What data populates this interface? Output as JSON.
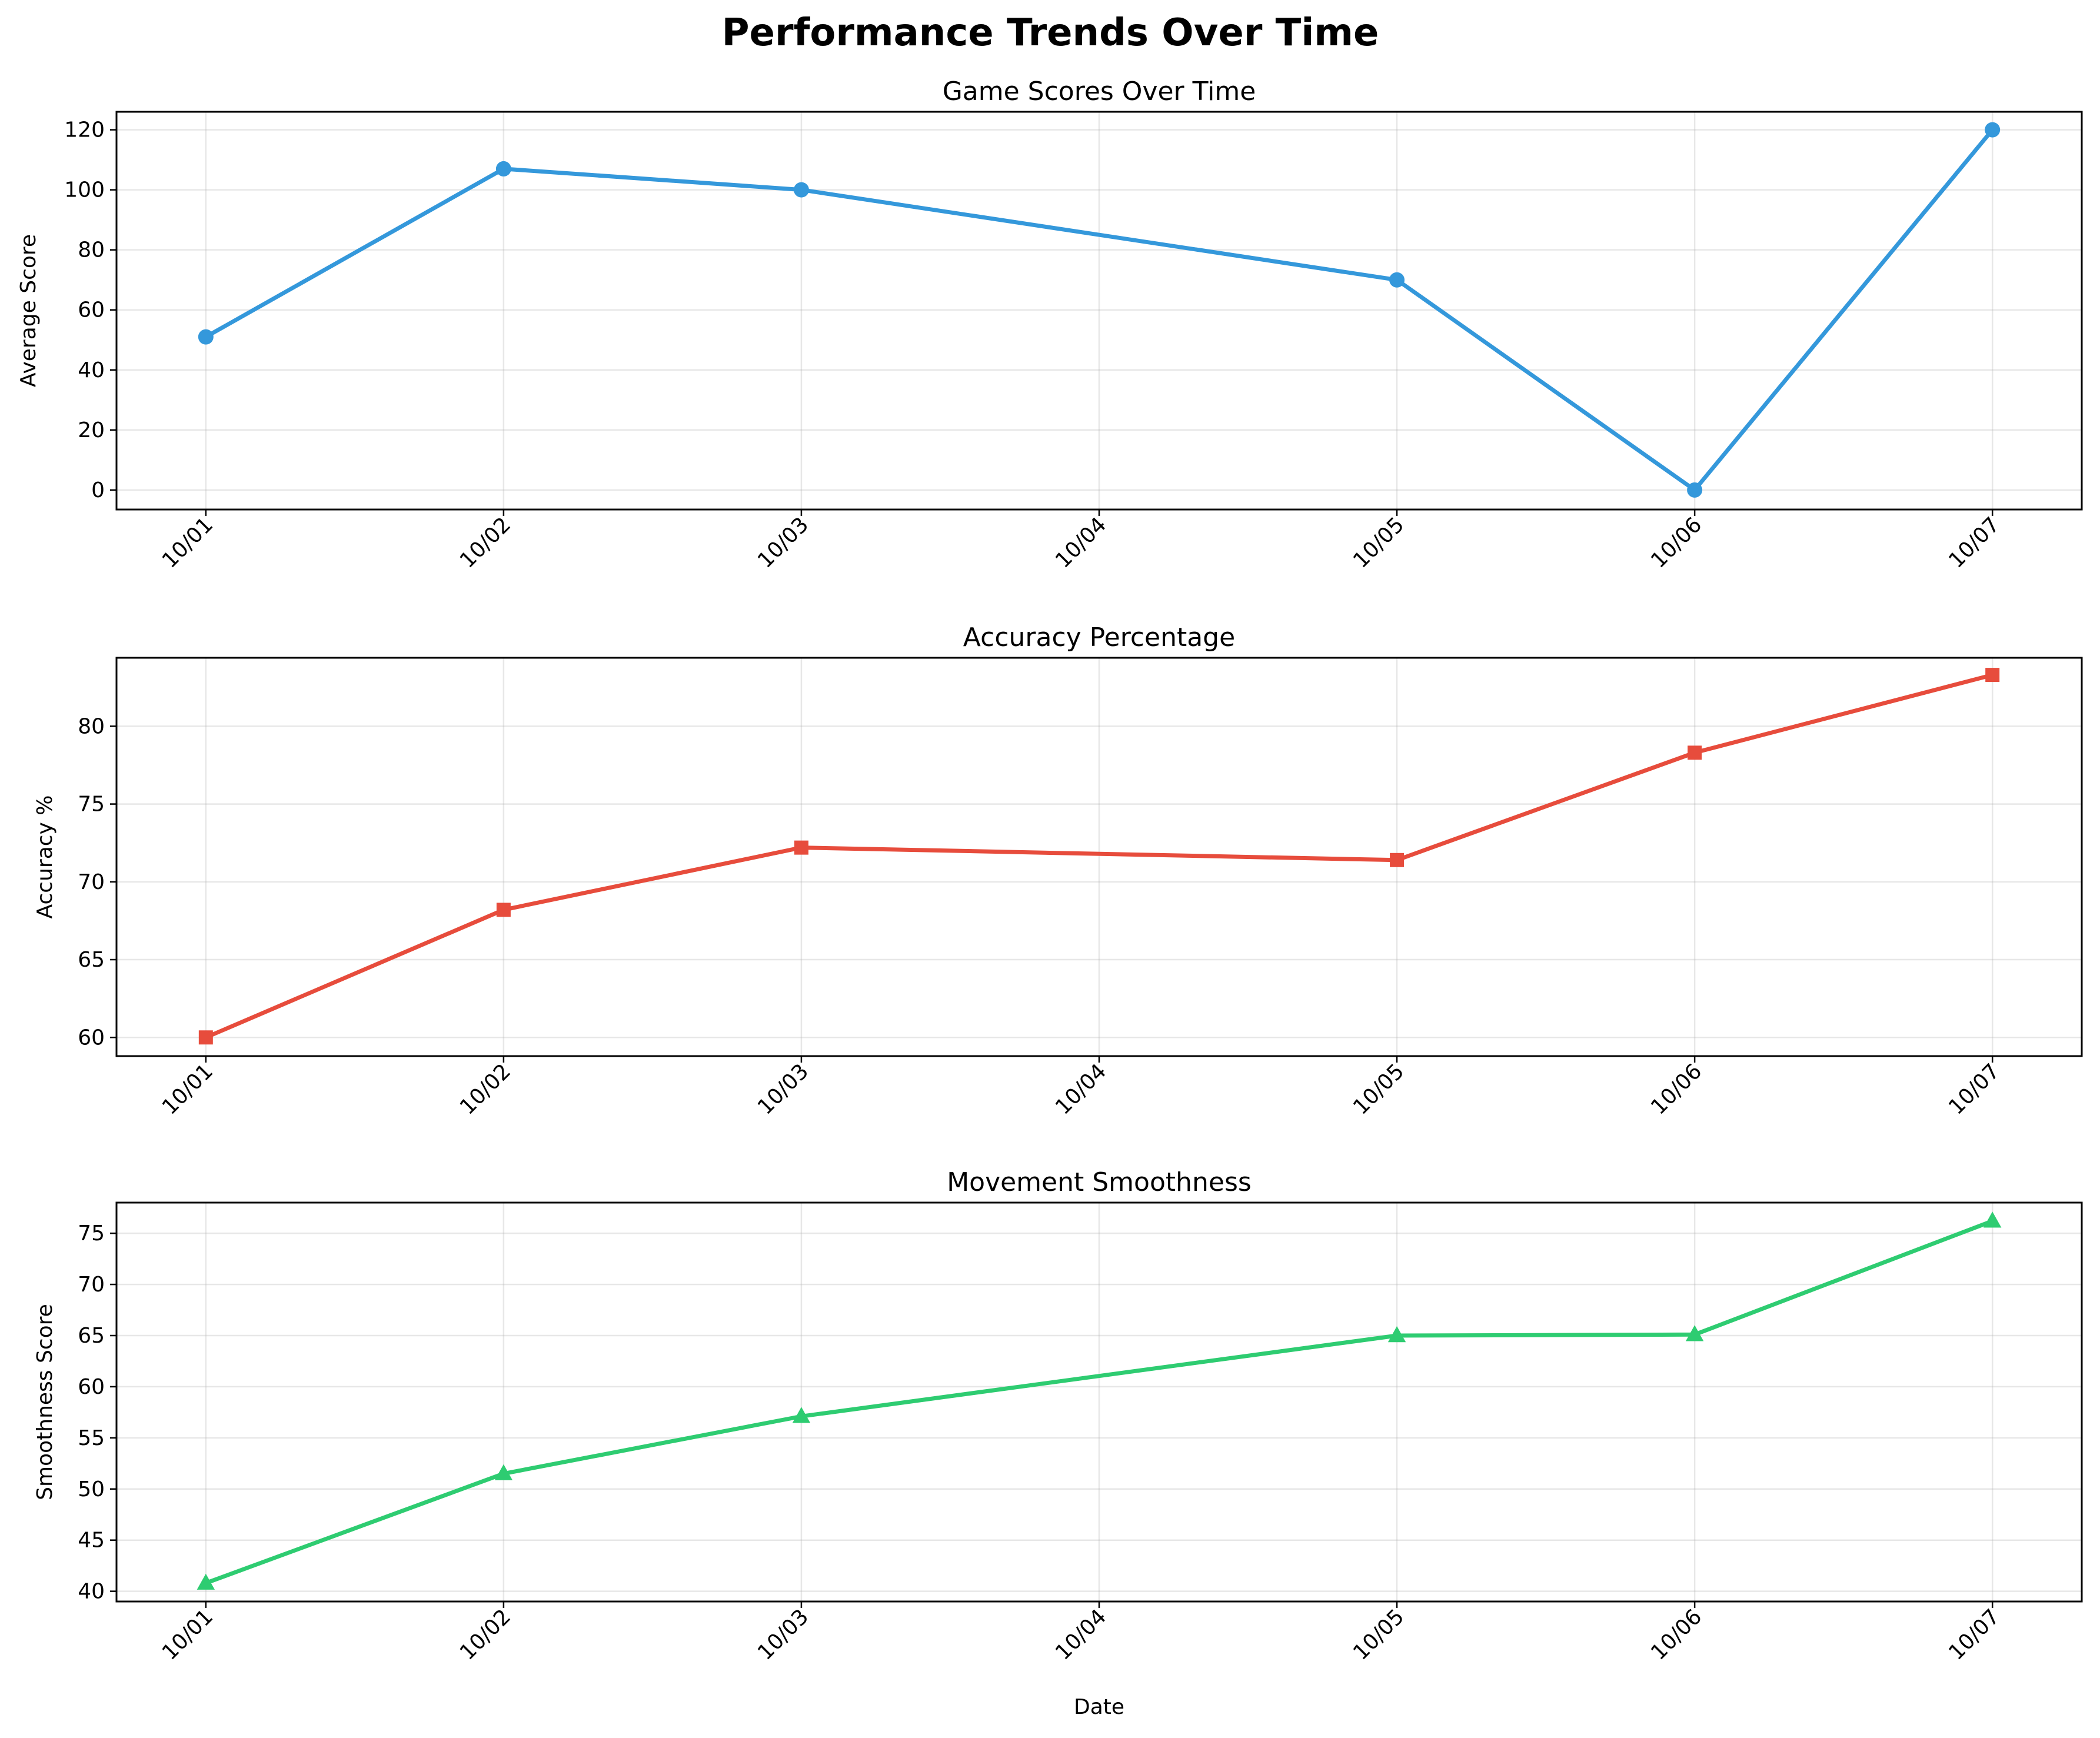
{
  "figure": {
    "suptitle": "Performance Trends Over Time",
    "xlabel": "Date"
  },
  "chart_data": [
    {
      "type": "line",
      "title": "Game Scores Over Time",
      "xlabel": "",
      "ylabel": "Average Score",
      "x": [
        "10/01",
        "10/02",
        "10/03",
        "10/05",
        "10/06",
        "10/07"
      ],
      "x_index": [
        1,
        2,
        3,
        5,
        6,
        7
      ],
      "x_ticks": [
        "10/01",
        "10/02",
        "10/03",
        "10/04",
        "10/05",
        "10/06",
        "10/07"
      ],
      "y_ticks": [
        0,
        20,
        40,
        60,
        80,
        100,
        120
      ],
      "ylim": [
        -6.5,
        126
      ],
      "series": [
        {
          "values": [
            51,
            107,
            100,
            70,
            0,
            120
          ],
          "color": "#3498db",
          "marker": "circle"
        }
      ],
      "grid": true
    },
    {
      "type": "line",
      "title": "Accuracy Percentage",
      "xlabel": "",
      "ylabel": "Accuracy %",
      "x": [
        "10/01",
        "10/02",
        "10/03",
        "10/05",
        "10/06",
        "10/07"
      ],
      "x_index": [
        1,
        2,
        3,
        5,
        6,
        7
      ],
      "x_ticks": [
        "10/01",
        "10/02",
        "10/03",
        "10/04",
        "10/05",
        "10/06",
        "10/07"
      ],
      "y_ticks": [
        60,
        65,
        70,
        75,
        80
      ],
      "ylim": [
        58.8,
        84.4
      ],
      "series": [
        {
          "values": [
            60.0,
            68.2,
            72.2,
            71.4,
            78.3,
            83.3
          ],
          "color": "#e74c3c",
          "marker": "square"
        }
      ],
      "grid": true
    },
    {
      "type": "line",
      "title": "Movement Smoothness",
      "xlabel": "Date",
      "ylabel": "Smoothness Score",
      "x": [
        "10/01",
        "10/02",
        "10/03",
        "10/05",
        "10/06",
        "10/07"
      ],
      "x_index": [
        1,
        2,
        3,
        5,
        6,
        7
      ],
      "x_ticks": [
        "10/01",
        "10/02",
        "10/03",
        "10/04",
        "10/05",
        "10/06",
        "10/07"
      ],
      "y_ticks": [
        40,
        45,
        50,
        55,
        60,
        65,
        70,
        75
      ],
      "ylim": [
        39.0,
        78.0
      ],
      "series": [
        {
          "values": [
            40.8,
            51.5,
            57.1,
            65.0,
            65.1,
            76.2
          ],
          "color": "#2ecc71",
          "marker": "triangle"
        }
      ],
      "grid": true
    }
  ]
}
